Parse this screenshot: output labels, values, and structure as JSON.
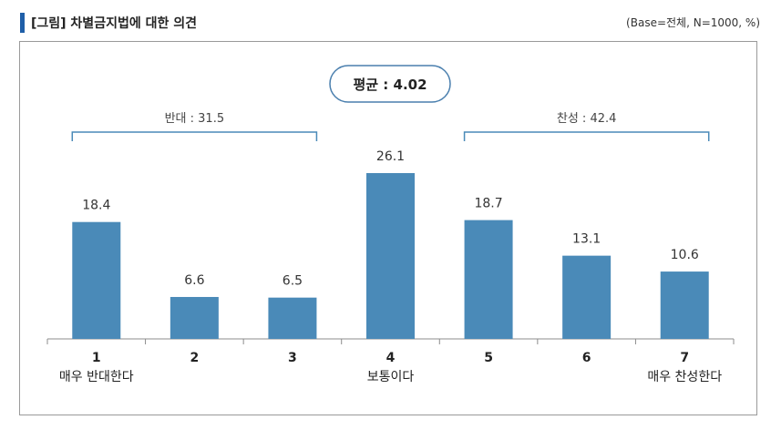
{
  "header": {
    "title": "[그림] 차별금지법에 대한 의견",
    "base_note": "(Base=전체, N=1000, %)"
  },
  "colors": {
    "bar": "#4a8ab8",
    "bracket": "#4a8ab8",
    "title_marker": "#1f5fa8"
  },
  "chart_data": {
    "type": "bar",
    "categories": [
      "1",
      "2",
      "3",
      "4",
      "5",
      "6",
      "7"
    ],
    "category_sublabels": [
      "매우 반대한다",
      "",
      "",
      "보통이다",
      "",
      "",
      "매우 찬성한다"
    ],
    "values": [
      18.4,
      6.6,
      6.5,
      26.1,
      18.7,
      13.1,
      10.6
    ],
    "value_labels": [
      "18.4",
      "6.6",
      "6.5",
      "26.1",
      "18.7",
      "13.1",
      "10.6"
    ],
    "ylim": [
      0,
      30
    ],
    "average_label": "평균 : 4.02",
    "groups": [
      {
        "label": "반대 : 31.5",
        "from": 0,
        "to": 2
      },
      {
        "label": "찬성 : 42.4",
        "from": 4,
        "to": 6
      }
    ],
    "grid": false,
    "xlabel": "",
    "ylabel": ""
  }
}
